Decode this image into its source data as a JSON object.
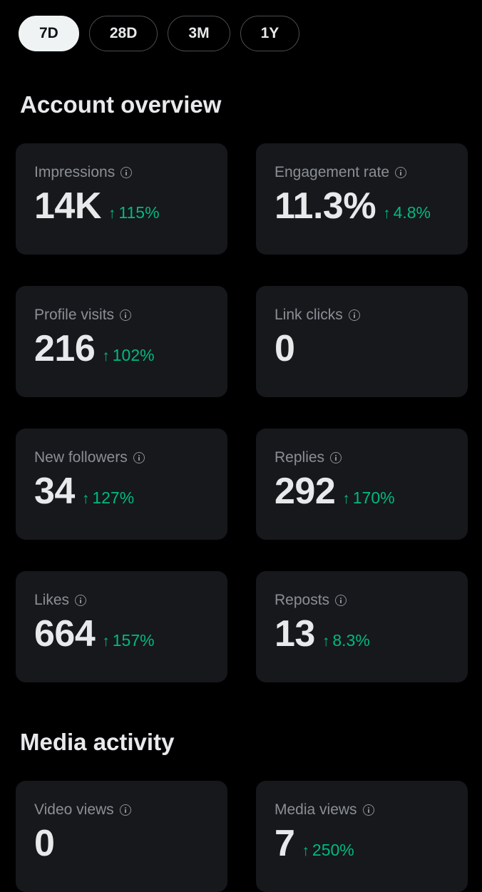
{
  "filters": [
    {
      "label": "7D",
      "active": true
    },
    {
      "label": "28D",
      "active": false
    },
    {
      "label": "3M",
      "active": false
    },
    {
      "label": "1Y",
      "active": false
    }
  ],
  "account_overview": {
    "title": "Account overview",
    "cards": [
      {
        "label": "Impressions",
        "value": "14K",
        "change": "115%"
      },
      {
        "label": "Engagement rate",
        "value": "11.3%",
        "change": "4.8%"
      },
      {
        "label": "Profile visits",
        "value": "216",
        "change": "102%"
      },
      {
        "label": "Link clicks",
        "value": "0",
        "change": ""
      },
      {
        "label": "New followers",
        "value": "34",
        "change": "127%"
      },
      {
        "label": "Replies",
        "value": "292",
        "change": "170%"
      },
      {
        "label": "Likes",
        "value": "664",
        "change": "157%"
      },
      {
        "label": "Reposts",
        "value": "13",
        "change": "8.3%"
      }
    ]
  },
  "media_activity": {
    "title": "Media activity",
    "cards": [
      {
        "label": "Video views",
        "value": "0",
        "change": ""
      },
      {
        "label": "Media views",
        "value": "7",
        "change": "250%"
      }
    ]
  },
  "icons": {
    "info": "info-icon",
    "trend_up": "↑"
  },
  "colors": {
    "background": "#000000",
    "card": "#16181c",
    "positive": "#00ba7c",
    "active_pill": "#eff3f4"
  }
}
